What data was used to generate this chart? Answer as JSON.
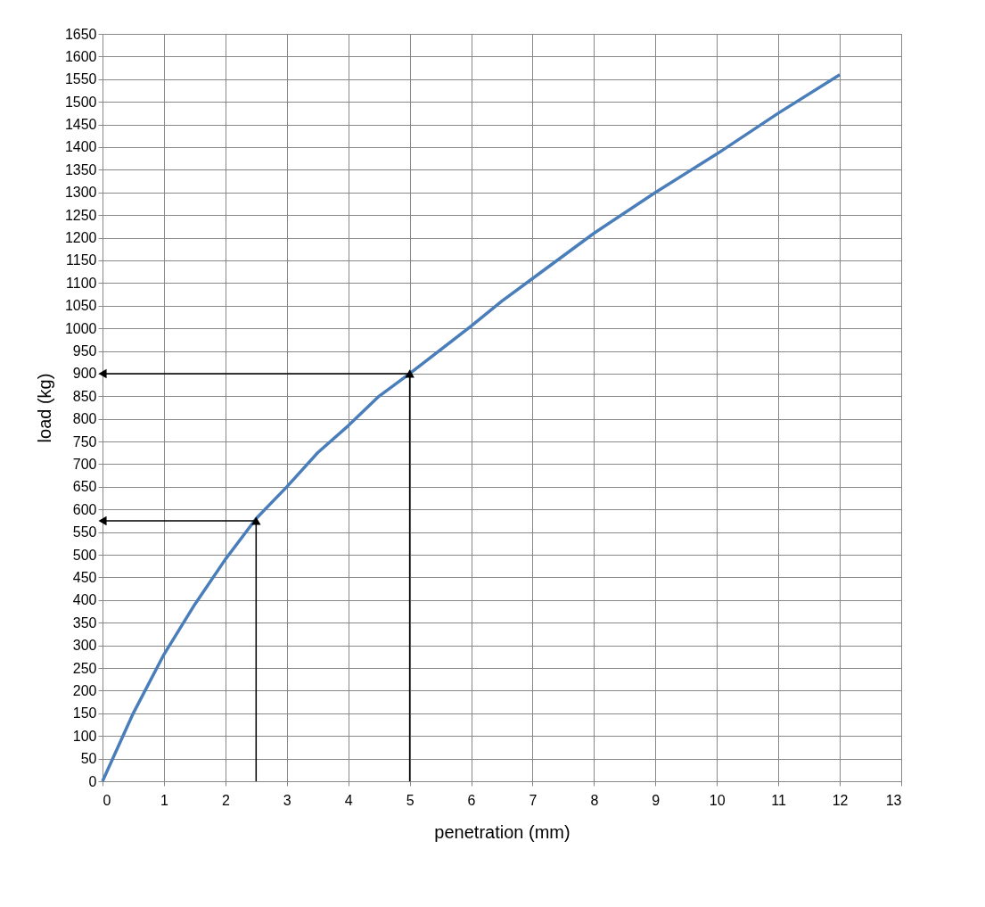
{
  "chart_data": {
    "type": "line",
    "xlabel": "penetration (mm)",
    "ylabel": "load (kg)",
    "xlim": [
      0,
      13
    ],
    "xticks": [
      0,
      1,
      2,
      3,
      4,
      5,
      6,
      7,
      8,
      9,
      10,
      11,
      12,
      13
    ],
    "ylim": [
      0,
      1650
    ],
    "yticks": [
      0,
      50,
      100,
      150,
      200,
      250,
      300,
      350,
      400,
      450,
      500,
      550,
      600,
      650,
      700,
      750,
      800,
      850,
      900,
      950,
      1000,
      1050,
      1100,
      1150,
      1200,
      1250,
      1300,
      1350,
      1400,
      1450,
      1500,
      1550,
      1600,
      1650
    ],
    "grid": true,
    "series": [
      {
        "color": "#4a7ebb",
        "x": [
          0,
          0.5,
          1,
          1.5,
          2,
          2.5,
          3,
          3.5,
          4,
          4.5,
          5,
          6,
          6.5,
          7,
          8,
          9,
          10,
          11,
          12
        ],
        "values": [
          0,
          150,
          280,
          390,
          490,
          580,
          650,
          725,
          785,
          850,
          900,
          1005,
          1060,
          1110,
          1210,
          1300,
          1385,
          1475,
          1560
        ]
      },
      {
        "color": "#000000",
        "marker": "triangle",
        "x": [
          0,
          5,
          5
        ],
        "values": [
          900,
          900,
          0
        ]
      },
      {
        "color": "#000000",
        "marker": "triangle",
        "x": [
          0,
          2.5,
          2.5
        ],
        "values": [
          575,
          575,
          0
        ]
      }
    ]
  }
}
